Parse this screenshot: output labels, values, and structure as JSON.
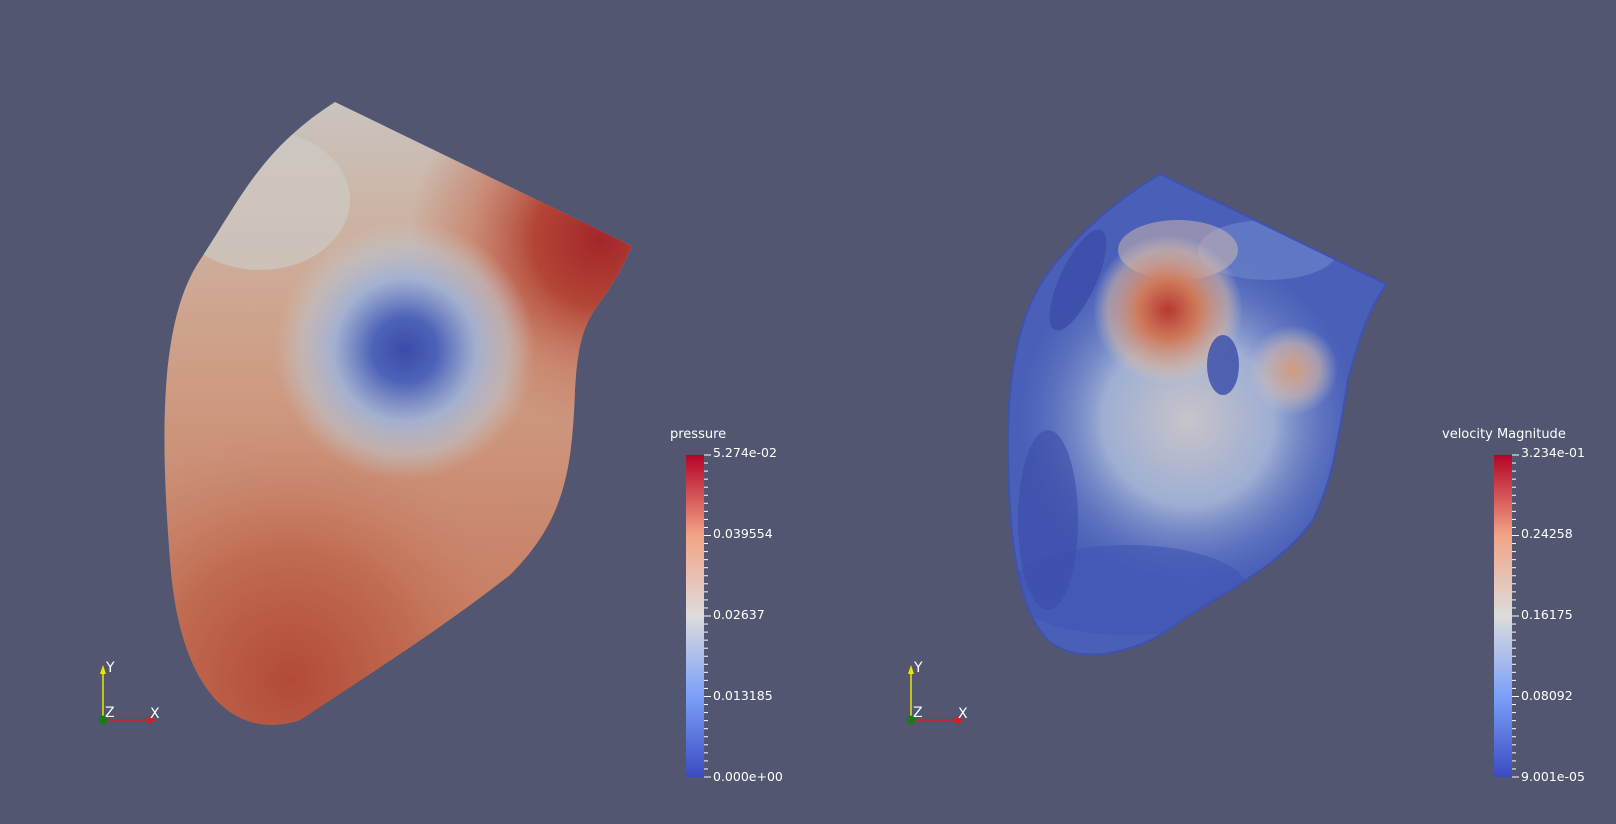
{
  "views": [
    {
      "id": "pressure-view",
      "scalar_bar": {
        "title": "pressure",
        "labels": [
          "5.274e-02",
          "0.039554",
          "0.02637",
          "0.013185",
          "0.000e+00"
        ]
      },
      "axes": {
        "x": "X",
        "y": "Y",
        "z": "Z"
      }
    },
    {
      "id": "velocity-view",
      "scalar_bar": {
        "title": "velocity Magnitude",
        "labels": [
          "3.234e-01",
          "0.24258",
          "0.16175",
          "0.08092",
          "9.001e-05"
        ]
      },
      "axes": {
        "x": "X",
        "y": "Y",
        "z": "Z"
      }
    }
  ],
  "colors": {
    "background": "#525670",
    "cool": "#3b4cc0",
    "neutral": "#dddcdc",
    "warm": "#b40426",
    "axis_x": "#d11f1f",
    "axis_y": "#e8e800",
    "axis_z": "#1a8a1a"
  },
  "colormap": "Cool to Warm"
}
